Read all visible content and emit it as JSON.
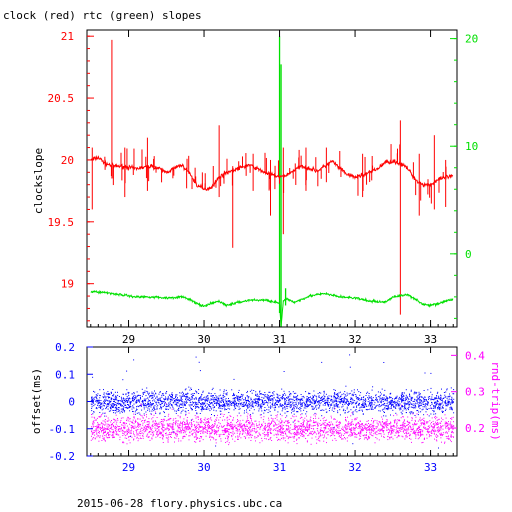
{
  "title": "clock (red) rtc (green) slopes",
  "footer": "2015-06-28 flory.physics.ubc.ca",
  "colors": {
    "clock": "#ff0000",
    "rtc": "#00e000",
    "offset": "#0000ff",
    "rndtrip": "#ff00ff",
    "frame": "#000000"
  },
  "chart_data": [
    {
      "type": "line",
      "xlim": [
        28.45,
        33.35
      ],
      "x_ticks": [
        "29",
        "30",
        "31",
        "32",
        "33"
      ],
      "ylabel": "clockslope",
      "ylim": [
        18.65,
        21.05
      ],
      "y_ticks": [
        "19",
        "19.5",
        "20",
        "20.5",
        "21"
      ],
      "y2lim": [
        -6.8,
        20.8
      ],
      "y2_ticks": [
        "0",
        "10",
        "20"
      ],
      "series": [
        {
          "axis": "left",
          "x": [
            28.5,
            28.6,
            28.7,
            28.8,
            28.9,
            29.0,
            29.1,
            29.2,
            29.3,
            29.4,
            29.5,
            29.6,
            29.7,
            29.8,
            29.9,
            30.0,
            30.1,
            30.2,
            30.3,
            30.4,
            30.5,
            30.6,
            30.7,
            30.8,
            30.9,
            31.0,
            31.1,
            31.2,
            31.3,
            31.4,
            31.5,
            31.6,
            31.7,
            31.8,
            31.9,
            32.0,
            32.1,
            32.2,
            32.3,
            32.4,
            32.5,
            32.6,
            32.7,
            32.8,
            32.9,
            33.0,
            33.1,
            33.2,
            33.3
          ],
          "y": [
            20.0,
            20.02,
            19.97,
            19.95,
            19.95,
            19.94,
            19.93,
            19.94,
            19.95,
            19.93,
            19.9,
            19.93,
            19.96,
            19.9,
            19.8,
            19.76,
            19.78,
            19.86,
            19.9,
            19.92,
            19.94,
            19.96,
            19.93,
            19.9,
            19.88,
            19.86,
            19.88,
            19.92,
            19.95,
            19.93,
            19.91,
            19.95,
            19.99,
            19.93,
            19.88,
            19.86,
            19.88,
            19.9,
            19.93,
            19.98,
            19.99,
            19.97,
            19.93,
            19.84,
            19.8,
            19.8,
            19.84,
            19.86,
            19.87
          ],
          "spikes": [
            {
              "x": 28.52,
              "lo": 19.6,
              "hi": 20.1
            },
            {
              "x": 28.78,
              "lo": 19.85,
              "hi": 20.97
            },
            {
              "x": 28.95,
              "lo": 19.7,
              "hi": 20.1
            },
            {
              "x": 29.25,
              "lo": 19.75,
              "hi": 20.18
            },
            {
              "x": 30.2,
              "lo": 19.7,
              "hi": 20.28
            },
            {
              "x": 30.38,
              "lo": 19.29,
              "hi": 19.95
            },
            {
              "x": 30.65,
              "lo": 19.75,
              "hi": 20.05
            },
            {
              "x": 30.88,
              "lo": 19.55,
              "hi": 20.0
            },
            {
              "x": 31.05,
              "lo": 19.4,
              "hi": 20.1
            },
            {
              "x": 31.35,
              "lo": 19.75,
              "hi": 20.1
            },
            {
              "x": 31.62,
              "lo": 19.82,
              "hi": 20.1
            },
            {
              "x": 32.1,
              "lo": 19.7,
              "hi": 20.05
            },
            {
              "x": 32.6,
              "lo": 18.75,
              "hi": 20.32
            },
            {
              "x": 32.85,
              "lo": 19.55,
              "hi": 20.05
            },
            {
              "x": 33.05,
              "lo": 19.6,
              "hi": 20.2
            },
            {
              "x": 33.2,
              "lo": 19.62,
              "hi": 20.0
            }
          ]
        },
        {
          "axis": "right",
          "x": [
            28.5,
            28.7,
            28.9,
            29.1,
            29.3,
            29.5,
            29.7,
            29.8,
            29.9,
            30.0,
            30.1,
            30.2,
            30.3,
            30.4,
            30.6,
            30.8,
            30.9,
            30.95,
            31.0,
            31.02,
            31.05,
            31.1,
            31.2,
            31.4,
            31.6,
            31.8,
            32.0,
            32.2,
            32.4,
            32.5,
            32.7,
            32.8,
            32.9,
            33.0,
            33.1,
            33.3
          ],
          "y": [
            -3.5,
            -3.6,
            -3.8,
            -4.0,
            -4.0,
            -4.1,
            -4.0,
            -4.2,
            -4.6,
            -4.9,
            -4.6,
            -4.4,
            -4.8,
            -4.6,
            -4.3,
            -4.3,
            -4.4,
            -4.5,
            -4.6,
            -6.8,
            -4.4,
            -4.2,
            -4.5,
            -3.9,
            -3.7,
            -4.0,
            -4.1,
            -4.4,
            -4.5,
            -4.0,
            -3.8,
            -4.2,
            -4.7,
            -4.8,
            -4.6,
            -4.2
          ],
          "spikes": [
            {
              "x": 31.0,
              "lo": -5.5,
              "hi": 20.2
            },
            {
              "x": 31.02,
              "lo": -6.8,
              "hi": 17.6
            },
            {
              "x": 31.08,
              "lo": -4.8,
              "hi": -3.2
            }
          ]
        }
      ]
    },
    {
      "type": "scatter",
      "xlim": [
        28.45,
        33.35
      ],
      "x_ticks": [
        "29",
        "30",
        "31",
        "32",
        "33"
      ],
      "ylabel": "offset(ms)",
      "ylim": [
        -0.2,
        0.2
      ],
      "y_ticks": [
        "0.2",
        "0.1",
        "0",
        "-0.1",
        "-0.2"
      ],
      "y2label": "rnd-trip(ms)",
      "y2lim": [
        0.123,
        0.423
      ],
      "y2_ticks": [
        "0.4",
        "0.3",
        "0.2"
      ],
      "series": [
        {
          "axis": "left",
          "x_range": [
            28.5,
            33.3
          ],
          "center": 0.0,
          "spread": 0.03,
          "outlier_max": 0.18
        },
        {
          "axis": "right",
          "x_range": [
            28.5,
            33.3
          ],
          "center": 0.2,
          "spread": 0.025,
          "outlier_max": 0.27
        }
      ]
    }
  ]
}
